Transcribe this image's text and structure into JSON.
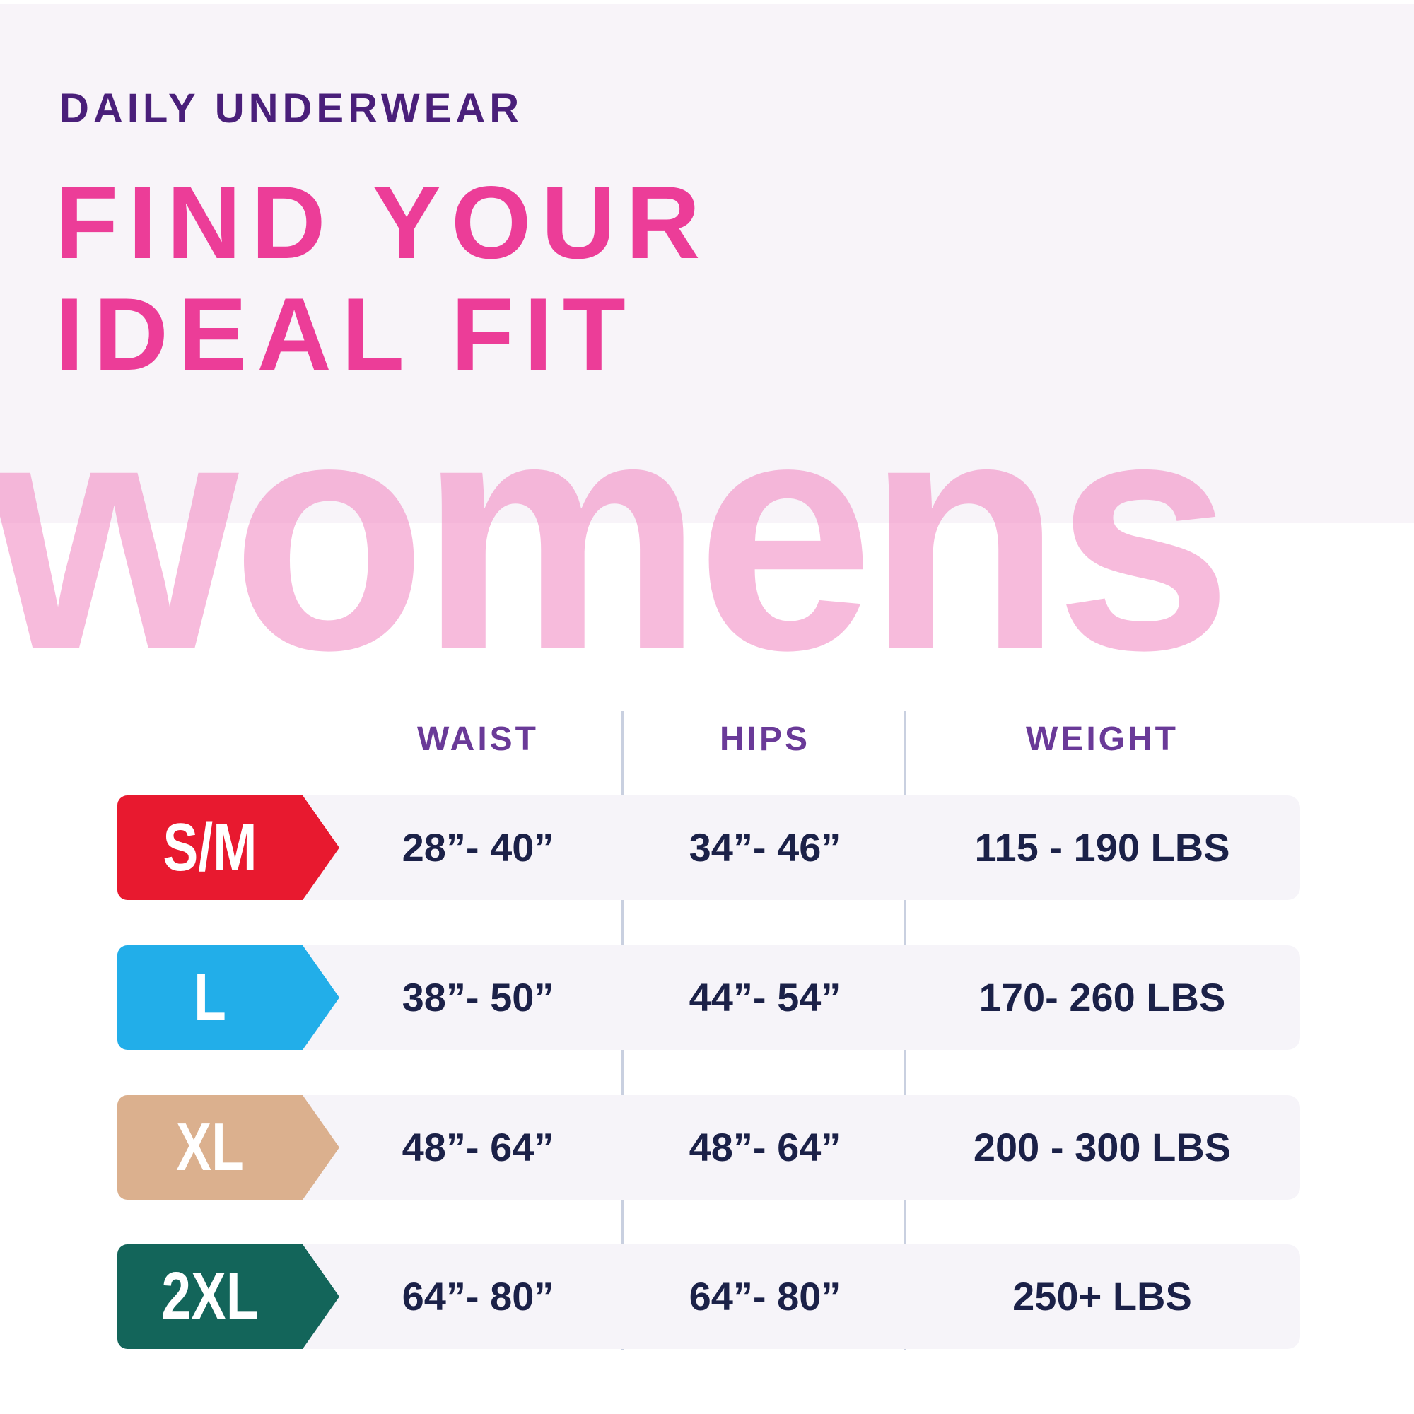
{
  "eyebrow": "DAILY UNDERWEAR",
  "title_line1": "FIND YOUR",
  "title_line2": "IDEAL FIT",
  "big_word": "womens",
  "colors": {
    "accent_pink": "#ec3d98",
    "eyebrow_purple": "#4a1f7a",
    "header_purple": "#6a3a98",
    "value_navy": "#1b2148"
  },
  "table": {
    "headers": [
      "WAIST",
      "HIPS",
      "WEIGHT"
    ],
    "rows": [
      {
        "size": "S/M",
        "color": "#e8192f",
        "waist": "28”- 40”",
        "hips": "34”- 46”",
        "weight": "115 - 190 LBS"
      },
      {
        "size": "L",
        "color": "#22aee9",
        "waist": "38”- 50”",
        "hips": "44”- 54”",
        "weight": "170- 260 LBS"
      },
      {
        "size": "XL",
        "color": "#dbb08e",
        "waist": "48”- 64”",
        "hips": "48”- 64”",
        "weight": "200 - 300 LBS"
      },
      {
        "size": "2XL",
        "color": "#13655a",
        "waist": "64”- 80”",
        "hips": "64”- 80”",
        "weight": "250+ LBS"
      }
    ]
  }
}
